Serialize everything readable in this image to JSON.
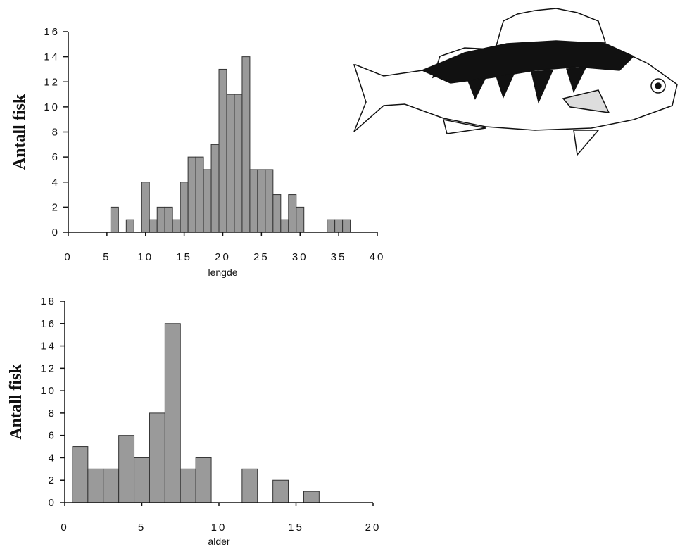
{
  "chart_data": [
    {
      "type": "histogram",
      "y_label": "Antall fisk",
      "x_label": "lengde",
      "color": "#9a9a9a",
      "bins": [
        5.5,
        6.5,
        7.5,
        8.5,
        9.5,
        10.5,
        11.5,
        12.5,
        13.5,
        14.5,
        15.5,
        16.5,
        17.5,
        18.5,
        19.5,
        20.5,
        21.5,
        22.5,
        23.5,
        24.5,
        25.5,
        26.5,
        27.5,
        28.5,
        29.5,
        30.5,
        31.5,
        32.5,
        33.5,
        34.5,
        35.5,
        36.5
      ],
      "values": [
        2,
        0,
        1,
        0,
        4,
        1,
        2,
        2,
        1,
        4,
        6,
        6,
        5,
        7,
        13,
        11,
        11,
        14,
        5,
        5,
        5,
        3,
        1,
        3,
        2,
        0,
        0,
        0,
        1,
        1,
        1
      ],
      "xlim": [
        0,
        40
      ],
      "ylim": [
        0,
        16
      ],
      "xticks": [
        0,
        5,
        10,
        15,
        20,
        25,
        30,
        35,
        40
      ],
      "yticks": [
        0,
        2,
        4,
        6,
        8,
        10,
        12,
        14,
        16
      ]
    },
    {
      "type": "histogram",
      "y_label": "Antall fisk",
      "x_label": "alder",
      "color": "#9a9a9a",
      "bins": [
        0.5,
        1.5,
        2.5,
        3.5,
        4.5,
        5.5,
        6.5,
        7.5,
        8.5,
        9.5,
        10.5,
        11.5,
        12.5,
        13.5,
        14.5,
        15.5,
        16.5
      ],
      "values": [
        5,
        3,
        3,
        6,
        4,
        8,
        16,
        3,
        4,
        0,
        0,
        3,
        0,
        2,
        0,
        1
      ],
      "xlim": [
        0,
        20
      ],
      "ylim": [
        0,
        18
      ],
      "xticks": [
        0,
        5,
        10,
        15,
        20
      ],
      "yticks": [
        0,
        2,
        4,
        6,
        8,
        10,
        12,
        14,
        16,
        18
      ]
    }
  ]
}
